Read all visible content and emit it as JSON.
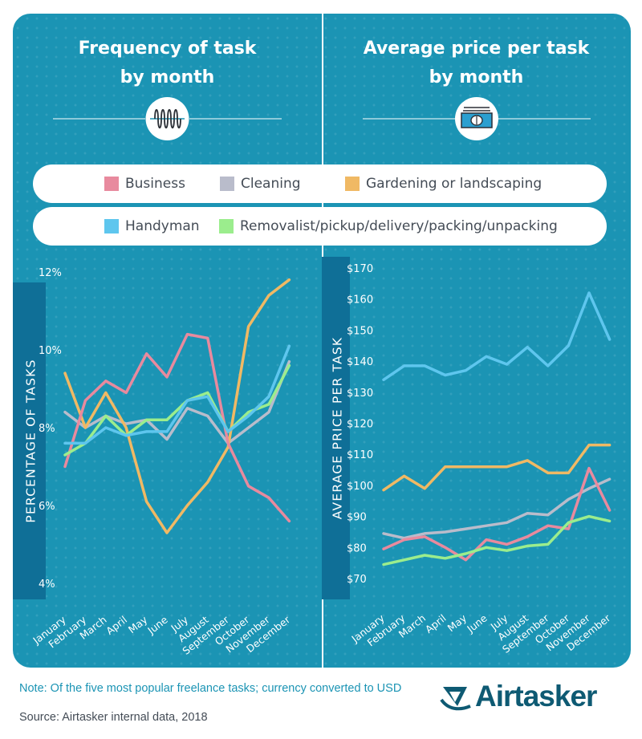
{
  "left_title": [
    "Frequency of task",
    "by month"
  ],
  "right_title": [
    "Average price per task",
    "by month"
  ],
  "legend": [
    {
      "label": "Business",
      "color": "#e88a9e"
    },
    {
      "label": "Cleaning",
      "color": "#b9bccb"
    },
    {
      "label": "Gardening or landscaping",
      "color": "#f0b964"
    },
    {
      "label": "Handyman",
      "color": "#5ec6ee"
    },
    {
      "label": "Removalist/pickup/delivery/packing/unpacking",
      "color": "#9bed8d"
    }
  ],
  "icons": {
    "left": "waveform-icon",
    "right": "cash-icon"
  },
  "footnote": "Note: Of the five most popular freelance tasks; currency converted to USD",
  "source": "Source: Airtasker internal data, 2018",
  "brand": "Airtasker",
  "chart_data": [
    {
      "type": "line",
      "title": "Frequency of task by month",
      "ylabel": "PERCENTAGE OF TASKS",
      "x": [
        "January",
        "February",
        "March",
        "April",
        "May",
        "June",
        "July",
        "August",
        "September",
        "October",
        "November",
        "December"
      ],
      "ylim": [
        4,
        12
      ],
      "yticks": [
        4,
        6,
        8,
        10,
        12
      ],
      "ytick_labels": [
        "4%",
        "6%",
        "8%",
        "10%",
        "12%"
      ],
      "series": [
        {
          "name": "Business",
          "color": "#e88a9e",
          "values": [
            7.0,
            8.7,
            9.2,
            8.9,
            9.9,
            9.3,
            10.4,
            10.3,
            7.6,
            6.5,
            6.2,
            5.6
          ]
        },
        {
          "name": "Cleaning",
          "color": "#b9bccb",
          "values": [
            8.4,
            8.0,
            8.3,
            8.1,
            8.2,
            7.7,
            8.5,
            8.3,
            7.6,
            8.0,
            8.4,
            9.7
          ]
        },
        {
          "name": "Gardening or landscaping",
          "color": "#f0b964",
          "values": [
            9.4,
            8.0,
            8.9,
            8.0,
            6.1,
            5.3,
            6.0,
            6.6,
            7.5,
            10.6,
            11.4,
            11.8
          ]
        },
        {
          "name": "Handyman",
          "color": "#5ec6ee",
          "values": [
            7.6,
            7.6,
            8.0,
            7.8,
            7.9,
            7.9,
            8.7,
            8.8,
            7.9,
            8.3,
            8.8,
            10.1
          ]
        },
        {
          "name": "Removalist/pickup/delivery/packing/unpacking",
          "color": "#9bed8d",
          "values": [
            7.3,
            7.6,
            8.3,
            7.8,
            8.2,
            8.2,
            8.7,
            8.9,
            7.9,
            8.4,
            8.6,
            9.6
          ]
        }
      ]
    },
    {
      "type": "line",
      "title": "Average price per task by month",
      "ylabel": "AVERAGE PRICE PER TASK",
      "x": [
        "January",
        "February",
        "March",
        "April",
        "May",
        "June",
        "July",
        "August",
        "September",
        "October",
        "November",
        "December"
      ],
      "ylim": [
        70,
        170
      ],
      "yticks": [
        70,
        80,
        90,
        100,
        110,
        120,
        130,
        140,
        150,
        160,
        170
      ],
      "ytick_labels": [
        "$70",
        "$80",
        "$90",
        "$100",
        "$110",
        "$120",
        "$130",
        "$140",
        "$150",
        "$160",
        "$170"
      ],
      "series": [
        {
          "name": "Business",
          "color": "#e88a9e",
          "values": [
            79.5,
            82.5,
            83.5,
            80,
            76,
            82.5,
            81,
            83.5,
            87,
            86,
            105.5,
            92
          ]
        },
        {
          "name": "Cleaning",
          "color": "#b9bccb",
          "values": [
            84.5,
            83,
            84.5,
            85,
            86,
            87,
            88,
            91,
            90.5,
            95.5,
            99,
            102
          ]
        },
        {
          "name": "Gardening or landscaping",
          "color": "#f0b964",
          "values": [
            98.5,
            103,
            99,
            106,
            106,
            106,
            106,
            108,
            104,
            104,
            113,
            113
          ]
        },
        {
          "name": "Handyman",
          "color": "#5ec6ee",
          "values": [
            134,
            138.5,
            138.5,
            135.5,
            137,
            141.5,
            139,
            144.5,
            138.5,
            145,
            162,
            147
          ]
        },
        {
          "name": "Removalist/pickup/delivery/packing/unpacking",
          "color": "#9bed8d",
          "values": [
            74.5,
            76,
            77.5,
            76.5,
            78,
            80,
            79,
            80.5,
            81,
            88,
            90,
            88.5
          ]
        }
      ]
    }
  ]
}
